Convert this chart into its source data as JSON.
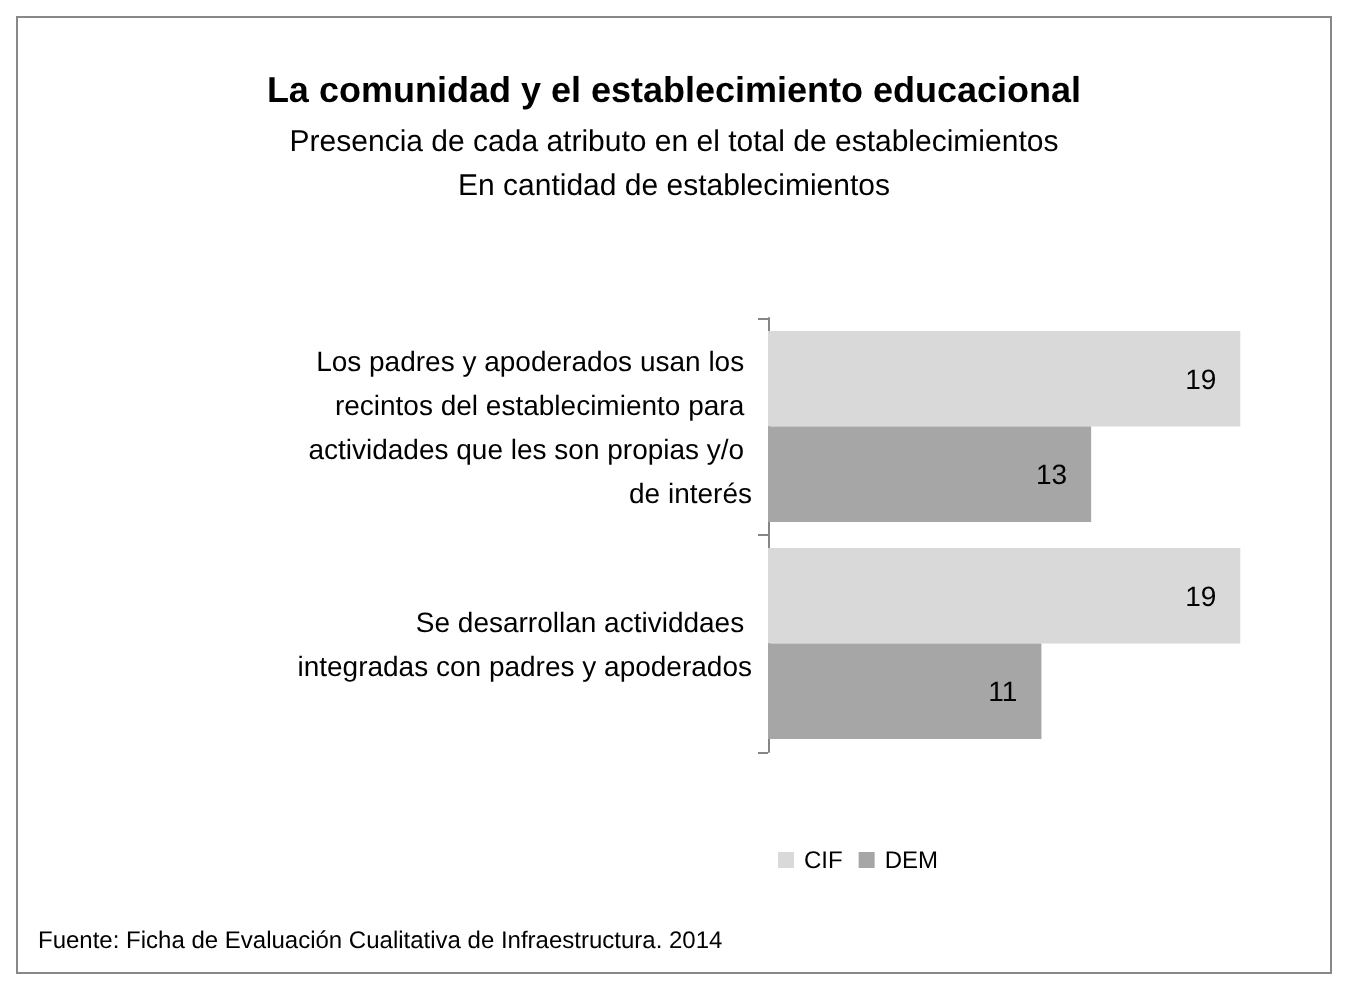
{
  "chart_data": {
    "type": "bar",
    "orientation": "horizontal",
    "title": "La comunidad y el establecimiento educacional",
    "subtitle": "Presencia de cada atributo en el total de establecimientos\nEn cantidad de establecimientos",
    "categories": [
      "Los padres y apoderados usan los recintos del establecimiento para actividades que les son propias y/o de interés",
      "Se desarrollan actividdaes integradas con padres y apoderados"
    ],
    "series": [
      {
        "name": "CIF",
        "color": "#d9d9d9",
        "values": [
          19,
          19
        ]
      },
      {
        "name": "DEM",
        "color": "#a6a6a6",
        "values": [
          13,
          11
        ]
      }
    ],
    "data_labels": true,
    "legend": "bottom",
    "grid": false,
    "tick_labels": "y",
    "annotations": [
      "Fuente: Ficha de Evaluación Cualitativa de Infraestructura. 2014"
    ]
  }
}
